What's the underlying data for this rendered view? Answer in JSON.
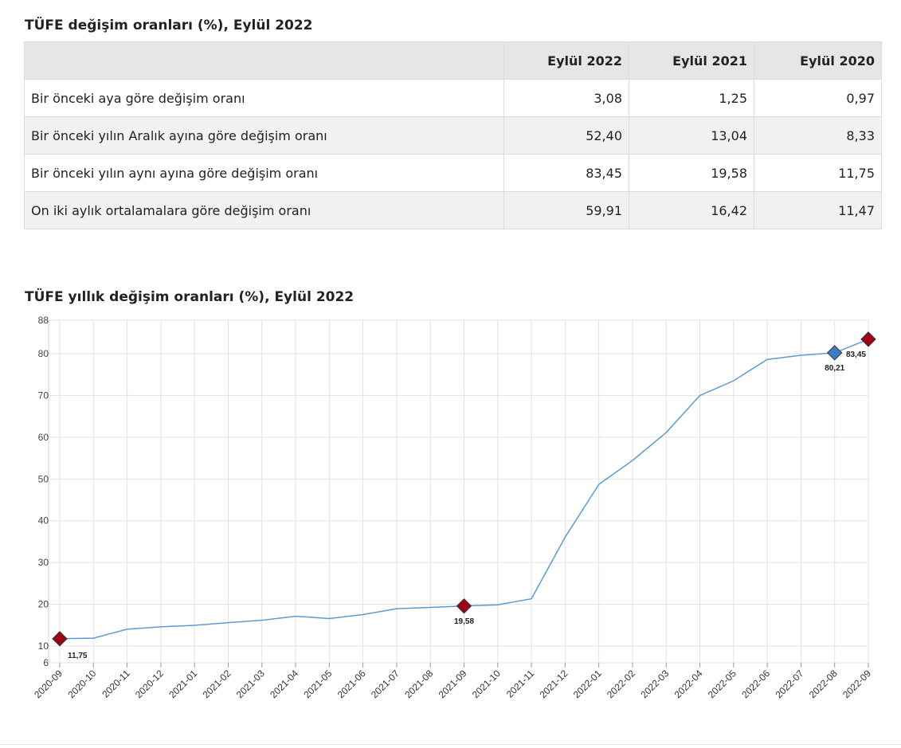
{
  "table": {
    "title": "TÜFE değişim oranları (%), Eylül 2022",
    "header": [
      "",
      "Eylül 2022",
      "Eylül 2021",
      "Eylül 2020"
    ],
    "rows": [
      [
        "Bir önceki aya göre değişim oranı",
        "3,08",
        "1,25",
        "0,97"
      ],
      [
        "Bir önceki yılın Aralık ayına göre değişim oranı",
        "52,40",
        "13,04",
        "8,33"
      ],
      [
        "Bir önceki yılın aynı ayına göre değişim oranı",
        "83,45",
        "19,58",
        "11,75"
      ],
      [
        "On iki aylık ortalamalara göre değişim oranı",
        "59,91",
        "16,42",
        "11,47"
      ]
    ]
  },
  "chart_data": {
    "type": "line",
    "title": "TÜFE yıllık değişim oranları (%), Eylül 2022",
    "x": [
      "2020-09",
      "2020-10",
      "2020-11",
      "2020-12",
      "2021-01",
      "2021-02",
      "2021-03",
      "2021-04",
      "2021-05",
      "2021-06",
      "2021-07",
      "2021-08",
      "2021-09",
      "2021-10",
      "2021-11",
      "2021-12",
      "2022-01",
      "2022-02",
      "2022-03",
      "2022-04",
      "2022-05",
      "2022-06",
      "2022-07",
      "2022-08",
      "2022-09"
    ],
    "values": [
      11.75,
      11.89,
      14.03,
      14.6,
      14.97,
      15.61,
      16.19,
      17.14,
      16.59,
      17.53,
      18.95,
      19.25,
      19.58,
      19.89,
      21.31,
      36.08,
      48.69,
      54.44,
      61.14,
      69.97,
      73.5,
      78.62,
      79.6,
      80.21,
      83.45
    ],
    "ylim": [
      6,
      88
    ],
    "yticks": [
      6,
      10,
      20,
      30,
      40,
      50,
      60,
      70,
      80,
      88
    ],
    "grid": true,
    "highlight": [
      {
        "x": "2020-09",
        "label": "11,75",
        "color": "#a0001a"
      },
      {
        "x": "2021-09",
        "label": "19,58",
        "color": "#a0001a"
      },
      {
        "x": "2022-08",
        "label": "80,21",
        "color": "#3b7dc4"
      },
      {
        "x": "2022-09",
        "label": "83,45",
        "color": "#a0001a"
      }
    ],
    "line_color": "#5b9bd5"
  }
}
